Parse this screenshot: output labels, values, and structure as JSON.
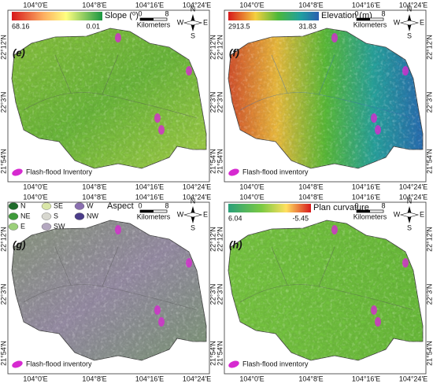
{
  "grid": {
    "lon": [
      "104°0'E",
      "104°8'E",
      "104°16'E",
      "104°24'E"
    ],
    "lat": [
      "22°12'N",
      "22°3'N",
      "21°54'N"
    ]
  },
  "north": {
    "n": "N",
    "s": "S",
    "w": "W",
    "e": "E"
  },
  "scale": {
    "start": "0",
    "end": "8",
    "unit": "Kilometers"
  },
  "panels": [
    {
      "label": "(e)",
      "legend": {
        "title": "Slope (⁰)",
        "max": "68.16",
        "min": "0.01"
      },
      "inventory": "Flash-flood Inventory"
    },
    {
      "label": "(f)",
      "legend": {
        "title": "Elevation (m)",
        "max": "2913.5",
        "min": "31.83"
      },
      "inventory": "Flash-flood inventory"
    },
    {
      "label": "(g)",
      "legend": {
        "title": "Aspect",
        "classes": [
          "N",
          "NE",
          "E",
          "SE",
          "S",
          "SW",
          "W",
          "NW"
        ]
      },
      "inventory": "Flash-flood inventory"
    },
    {
      "label": "(h)",
      "legend": {
        "title": "Plan curvature",
        "max": "6.04",
        "min": "-5.45"
      },
      "inventory": "Flash-flood inventory"
    }
  ]
}
